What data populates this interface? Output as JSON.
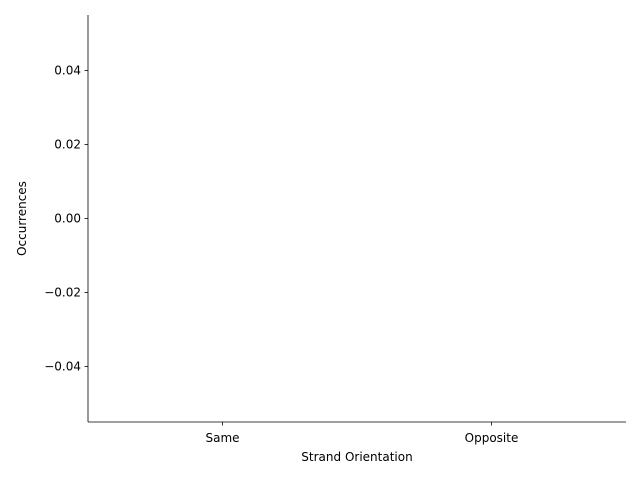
{
  "chart_data": {
    "type": "bar",
    "categories": [
      "Same",
      "Opposite"
    ],
    "values": [
      0,
      0
    ],
    "xlabel": "Strand Orientation",
    "ylabel": "Occurrences",
    "ylim": [
      -0.055,
      0.055
    ],
    "yticks": [
      -0.04,
      -0.02,
      0.0,
      0.02,
      0.04
    ],
    "ytick_labels": [
      "−0.04",
      "−0.02",
      "0.00",
      "0.02",
      "0.04"
    ],
    "grid": false,
    "spines": [
      "left",
      "bottom"
    ]
  }
}
